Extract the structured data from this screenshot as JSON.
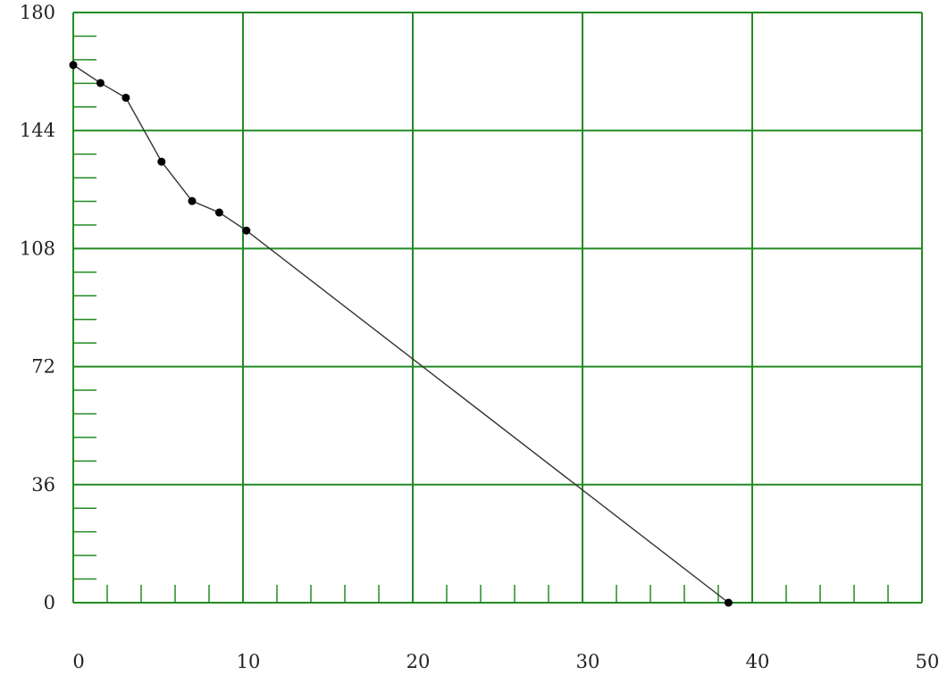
{
  "chart_data": {
    "type": "line",
    "title": "",
    "xlabel": "",
    "ylabel": "",
    "xlim": [
      0,
      50
    ],
    "ylim": [
      0,
      180
    ],
    "x_ticks": [
      0,
      10,
      20,
      30,
      40,
      50
    ],
    "y_ticks": [
      0,
      36,
      72,
      108,
      144,
      180
    ],
    "x_minor_step": 2,
    "y_minor_step": 7.2,
    "grid": true,
    "colors": {
      "grid": "#228b22",
      "line": "#333333",
      "point": "#000000"
    },
    "series": [
      {
        "x": [
          0,
          1.6,
          3.1,
          5.2,
          7.0,
          8.6,
          10.2,
          38.6
        ],
        "y": [
          164,
          158.5,
          154,
          134.5,
          122.5,
          119,
          113.5,
          0
        ]
      }
    ]
  }
}
